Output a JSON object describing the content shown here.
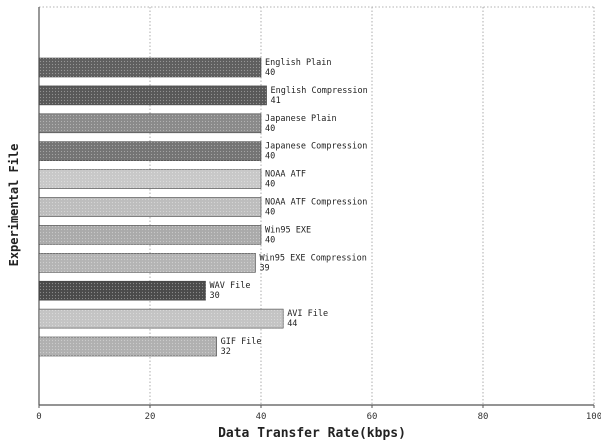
{
  "chart_data": {
    "type": "bar",
    "orientation": "horizontal",
    "title": "",
    "xlabel": "Data Transfer Rate(kbps)",
    "ylabel": "Experimental File",
    "xlim": [
      0,
      100
    ],
    "xticks": [
      0,
      20,
      40,
      60,
      80,
      100
    ],
    "grid": true,
    "categories": [
      "English Plain",
      "English Compression",
      "Japanese Plain",
      "Japanese Compression",
      "NOAA ATF",
      "NOAA ATF Compression",
      "Win95 EXE",
      "Win95 EXE Compression",
      "WAV File",
      "AVI File",
      "GIF File"
    ],
    "values": [
      40,
      41,
      40,
      40,
      40,
      40,
      40,
      39,
      30,
      44,
      32
    ],
    "value_labels": [
      "40",
      "41",
      "40",
      "40",
      "40",
      "40",
      "40",
      "39",
      "30",
      "44",
      "32"
    ],
    "colors": [
      "#5f5f5f",
      "#585858",
      "#8a8a8a",
      "#747474",
      "#c8c8c8",
      "#bdbdbd",
      "#aaaaaa",
      "#b4b4b4",
      "#4a4a4a",
      "#c4c4c4",
      "#b0b0b0"
    ]
  }
}
